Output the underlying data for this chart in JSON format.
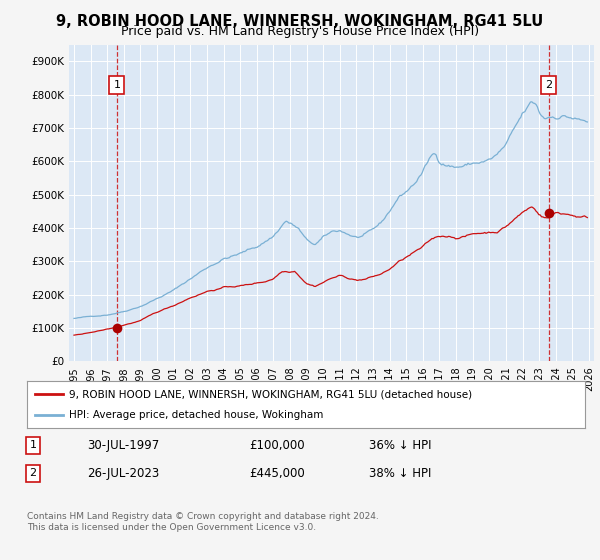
{
  "title": "9, ROBIN HOOD LANE, WINNERSH, WOKINGHAM, RG41 5LU",
  "subtitle": "Price paid vs. HM Land Registry's House Price Index (HPI)",
  "title_fontsize": 10.5,
  "subtitle_fontsize": 9,
  "background_color": "#f5f5f5",
  "plot_bg_color": "#dce8f5",
  "hpi_color": "#7ab0d4",
  "price_color": "#cc1111",
  "marker_color": "#aa0000",
  "ylim": [
    0,
    950000
  ],
  "xlim_start": 1994.7,
  "xlim_end": 2026.3,
  "yticks": [
    0,
    100000,
    200000,
    300000,
    400000,
    500000,
    600000,
    700000,
    800000,
    900000
  ],
  "ytick_labels": [
    "£0",
    "£100K",
    "£200K",
    "£300K",
    "£400K",
    "£500K",
    "£600K",
    "£700K",
    "£800K",
    "£900K"
  ],
  "xticks": [
    1995,
    1996,
    1997,
    1998,
    1999,
    2000,
    2001,
    2002,
    2003,
    2004,
    2005,
    2006,
    2007,
    2008,
    2009,
    2010,
    2011,
    2012,
    2013,
    2014,
    2015,
    2016,
    2017,
    2018,
    2019,
    2020,
    2021,
    2022,
    2023,
    2024,
    2025,
    2026
  ],
  "sale1_year": 1997.58,
  "sale1_price": 100000,
  "sale1_label": "1",
  "sale2_year": 2023.58,
  "sale2_price": 445000,
  "sale2_label": "2",
  "legend_line1": "9, ROBIN HOOD LANE, WINNERSH, WOKINGHAM, RG41 5LU (detached house)",
  "legend_line2": "HPI: Average price, detached house, Wokingham",
  "footer": "Contains HM Land Registry data © Crown copyright and database right 2024.\nThis data is licensed under the Open Government Licence v3.0."
}
